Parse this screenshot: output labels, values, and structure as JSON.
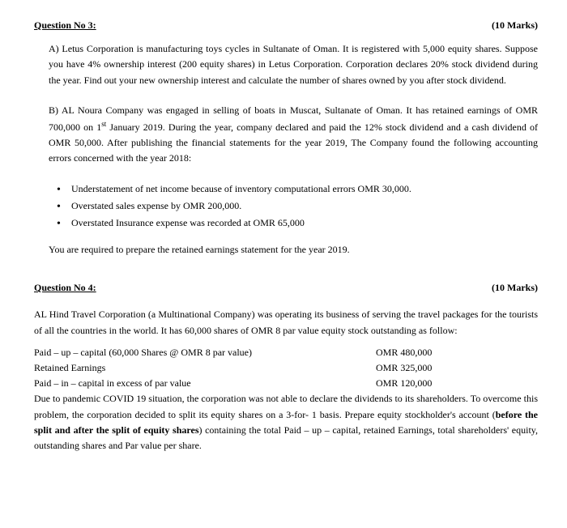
{
  "q3": {
    "title": "Question No 3:",
    "marks": "(10 Marks)",
    "partA": "A) Letus Corporation is manufacturing toys cycles in Sultanate of Oman. It is registered with 5,000 equity shares. Suppose you have 4% ownership interest (200 equity shares) in Letus Corporation. Corporation declares 20% stock dividend during the year. Find out your new ownership interest and calculate the number of shares owned by you after stock dividend.",
    "partB_intro1": "B) AL Noura Company was engaged in selling of boats in Muscat, Sultanate of Oman. It has retained earnings of OMR 700,000 on 1",
    "partB_sup": "st",
    "partB_intro2": " January 2019. During the year, company declared and paid the 12% stock dividend and a cash dividend of OMR 50,000. After publishing the financial statements for the year 2019, The Company found the following accounting errors concerned with the year 2018:",
    "bullets": [
      "Understatement of net income because of inventory computational errors OMR 30,000.",
      "Overstated sales expense by OMR 200,000.",
      "Overstated Insurance expense was recorded at OMR 65,000"
    ],
    "instruction": "You are required to prepare the retained earnings statement for the year 2019."
  },
  "q4": {
    "title": "Question No 4:",
    "marks": "(10 Marks)",
    "intro": "AL Hind Travel Corporation (a Multinational Company) was operating its business of serving the travel packages for the tourists of all the countries in the world. It has 60,000 shares of OMR 8 par value equity stock outstanding as follow:",
    "rows": [
      {
        "label": "Paid – up – capital (60,000 Shares @ OMR 8 par value)",
        "value": "OMR 480,000"
      },
      {
        "label": "Retained Earnings",
        "value": "OMR 325,000"
      },
      {
        "label": "Paid – in – capital in excess of par value",
        "value": "OMR 120,000"
      }
    ],
    "body": "Due to pandemic COVID 19 situation, the corporation was not able to declare the dividends to its shareholders. To overcome this problem, the corporation decided to split its equity shares on a 3-for- 1 basis. Prepare equity stockholder's account (before the split and after the split of equity shares) containing the total Paid – up – capital, retained Earnings, total shareholders' equity, outstanding shares and Par value per share."
  }
}
